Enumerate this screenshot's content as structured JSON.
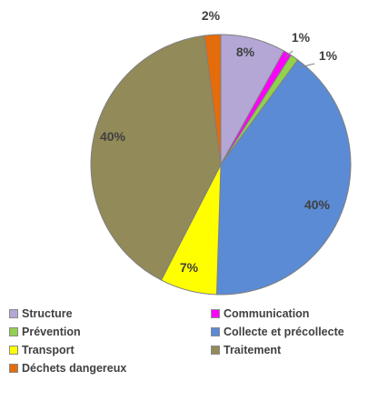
{
  "chart_data": {
    "type": "pie",
    "title": "",
    "slices": [
      {
        "name": "Structure",
        "value": 8,
        "label": "8%",
        "color": "#B4A7D6"
      },
      {
        "name": "Communication",
        "value": 1,
        "label": "1%",
        "color": "#FF00FF"
      },
      {
        "name": "Prévention",
        "value": 1,
        "label": "1%",
        "color": "#92D050"
      },
      {
        "name": "Collecte et précollecte",
        "value": 40,
        "label": "40%",
        "color": "#5B8BD4"
      },
      {
        "name": "Transport",
        "value": 7,
        "label": "7%",
        "color": "#FFFF00"
      },
      {
        "name": "Traitement",
        "value": 40,
        "label": "40%",
        "color": "#938A5A"
      },
      {
        "name": "Déchets dangereux",
        "value": 2,
        "label": "2%",
        "color": "#E46C0A"
      }
    ],
    "start_angle": "top, clockwise",
    "legend_position": "bottom"
  }
}
